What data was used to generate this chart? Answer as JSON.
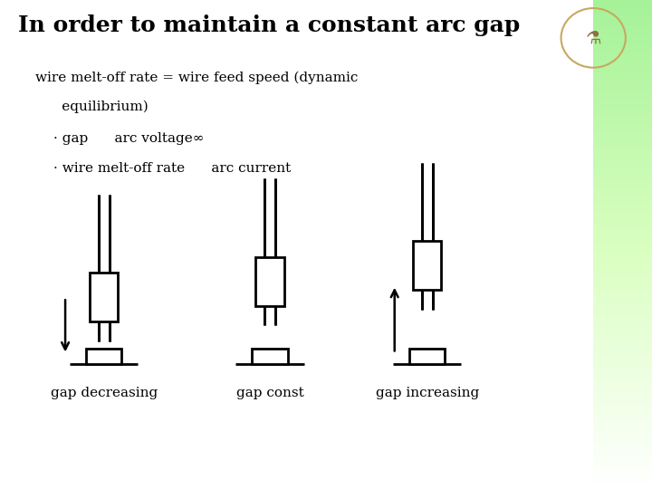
{
  "title": "In order to maintain a constant arc gap",
  "title_fontsize": 18,
  "background_color": "#ffffff",
  "text_color": "#000000",
  "subtitle_line1": "wire melt-off rate = wire feed speed (dynamic",
  "subtitle_line2": "      equilibrium)",
  "bullet1": "· gap      arc voltage∞",
  "bullet2": "· wire melt-off rate      arc current",
  "labels": [
    "gap decreasing",
    "gap const",
    "gap increasing"
  ],
  "lw": 2.0,
  "fig_width": 7.2,
  "fig_height": 5.4,
  "dpi": 100
}
